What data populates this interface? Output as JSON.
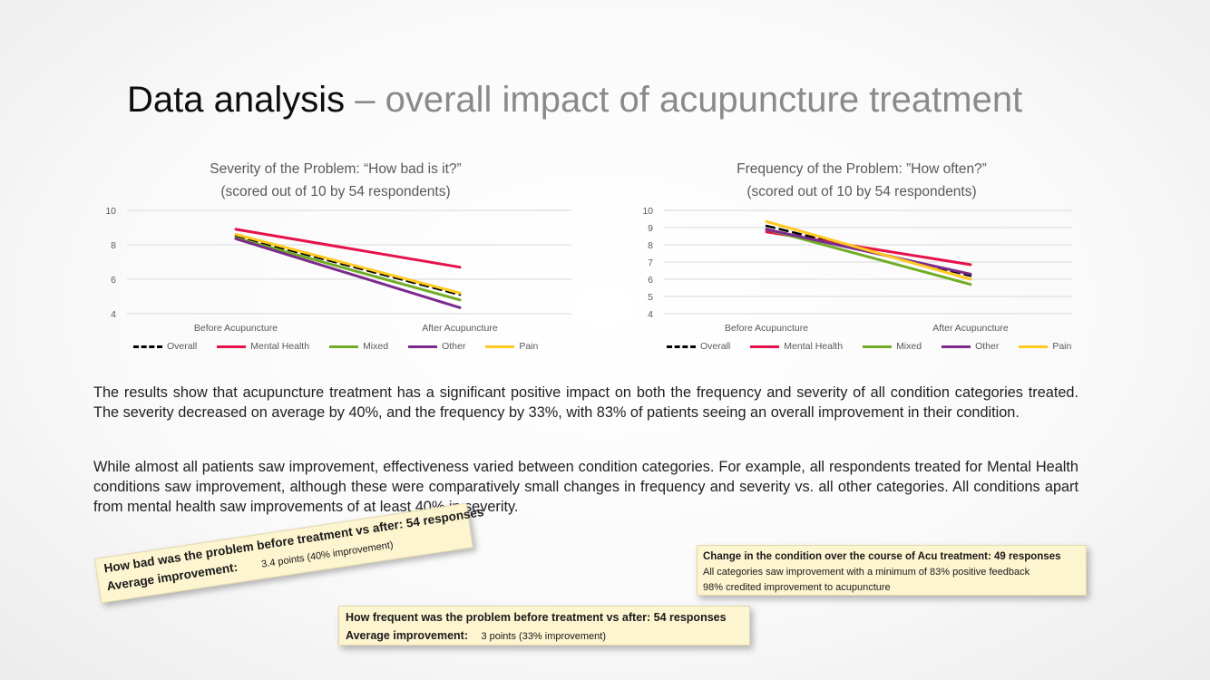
{
  "slide": {
    "title_main": "Data analysis",
    "title_rest": " – overall impact of acupuncture treatment",
    "paragraph1": "The results show that acupuncture treatment has a significant positive impact on both the frequency and severity of all condition categories treated. The severity decreased on average by 40%, and the frequency by 33%, with 83% of patients seeing an overall improvement in their condition.",
    "paragraph2": "While almost all patients saw improvement, effectiveness varied between condition categories. For example, all respondents treated for Mental Health conditions saw improvement, although these were comparatively small changes in frequency and severity vs. all other categories. All conditions apart from mental health saw improvements of at least 40% in severity."
  },
  "notes": {
    "severity": {
      "heading": "How bad was the problem before treatment vs after: 54 responses",
      "label": "Average improvement:",
      "value": "3.4 points (40% improvement)"
    },
    "frequency": {
      "heading": "How frequent was the problem before treatment vs after: 54 responses",
      "label": "Average improvement:",
      "value": "3 points (33% improvement)"
    },
    "change": {
      "heading": "Change in the condition over the course of Acu treatment: 49 responses",
      "line1": "All categories saw improvement with a minimum of 83% positive feedback",
      "line2": "98% credited improvement to acupuncture"
    }
  },
  "series_style": {
    "Overall": {
      "color": "#000000",
      "dash": true
    },
    "Mental Health": {
      "color": "#e5124a",
      "dash": false
    },
    "Mixed": {
      "color": "#70ad25",
      "dash": false
    },
    "Other": {
      "color": "#7b2a8c",
      "dash": false
    },
    "Pain": {
      "color": "#ffc91f",
      "dash": false
    }
  },
  "chart_data": [
    {
      "type": "line",
      "title_line1": "Severity of the Problem: “How bad is it?”",
      "title_line2": "(scored out of 10 by 54 respondents)",
      "categories": [
        "Before Acupuncture",
        "After Acupuncture"
      ],
      "ylim": [
        4,
        10
      ],
      "yticks": [
        "4",
        "6",
        "8",
        "10"
      ],
      "grid": true,
      "legend_position": "bottom",
      "series": [
        {
          "name": "Overall",
          "values": [
            8.5,
            5.1
          ]
        },
        {
          "name": "Mental Health",
          "values": [
            8.9,
            6.7
          ]
        },
        {
          "name": "Mixed",
          "values": [
            8.4,
            4.8
          ]
        },
        {
          "name": "Other",
          "values": [
            8.35,
            4.35
          ]
        },
        {
          "name": "Pain",
          "values": [
            8.6,
            5.2
          ]
        }
      ]
    },
    {
      "type": "line",
      "title_line1": "Frequency of the Problem: ”How often?”",
      "title_line2": "(scored out of 10 by 54 respondents)",
      "categories": [
        "Before Acupuncture",
        "After Acupuncture"
      ],
      "ylim": [
        4,
        10
      ],
      "yticks": [
        "4",
        "5",
        "6",
        "7",
        "8",
        "9",
        "10"
      ],
      "grid": true,
      "legend_position": "bottom",
      "series": [
        {
          "name": "Overall",
          "values": [
            9.1,
            6.2
          ]
        },
        {
          "name": "Mental Health",
          "values": [
            8.75,
            6.85
          ]
        },
        {
          "name": "Mixed",
          "values": [
            8.9,
            5.7
          ]
        },
        {
          "name": "Other",
          "values": [
            8.9,
            6.3
          ]
        },
        {
          "name": "Pain",
          "values": [
            9.35,
            6.0
          ]
        }
      ]
    }
  ]
}
